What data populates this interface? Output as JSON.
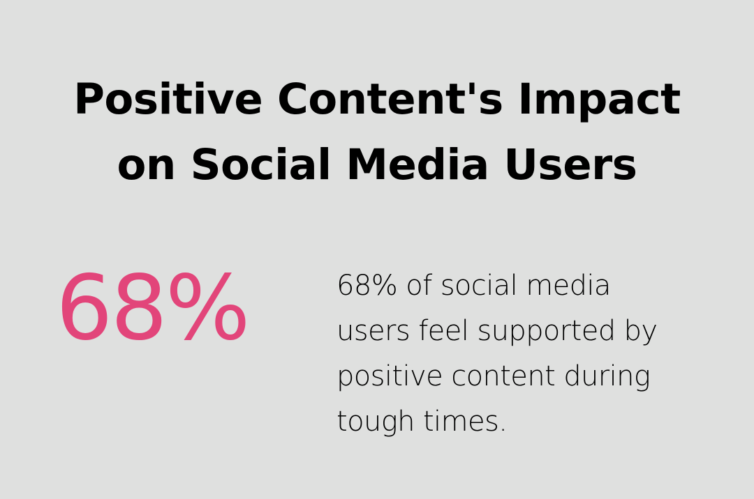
{
  "title": {
    "line1": "Positive Content's Impact",
    "line2": "on Social Media Users"
  },
  "stat": {
    "value": "68%",
    "color": "#e2457a"
  },
  "description": {
    "lines": [
      "68% of social media",
      "users feel supported by",
      "positive content during",
      "tough times."
    ]
  },
  "colors": {
    "background": "#dfe0df",
    "text": "#000000",
    "accent": "#e2457a"
  }
}
